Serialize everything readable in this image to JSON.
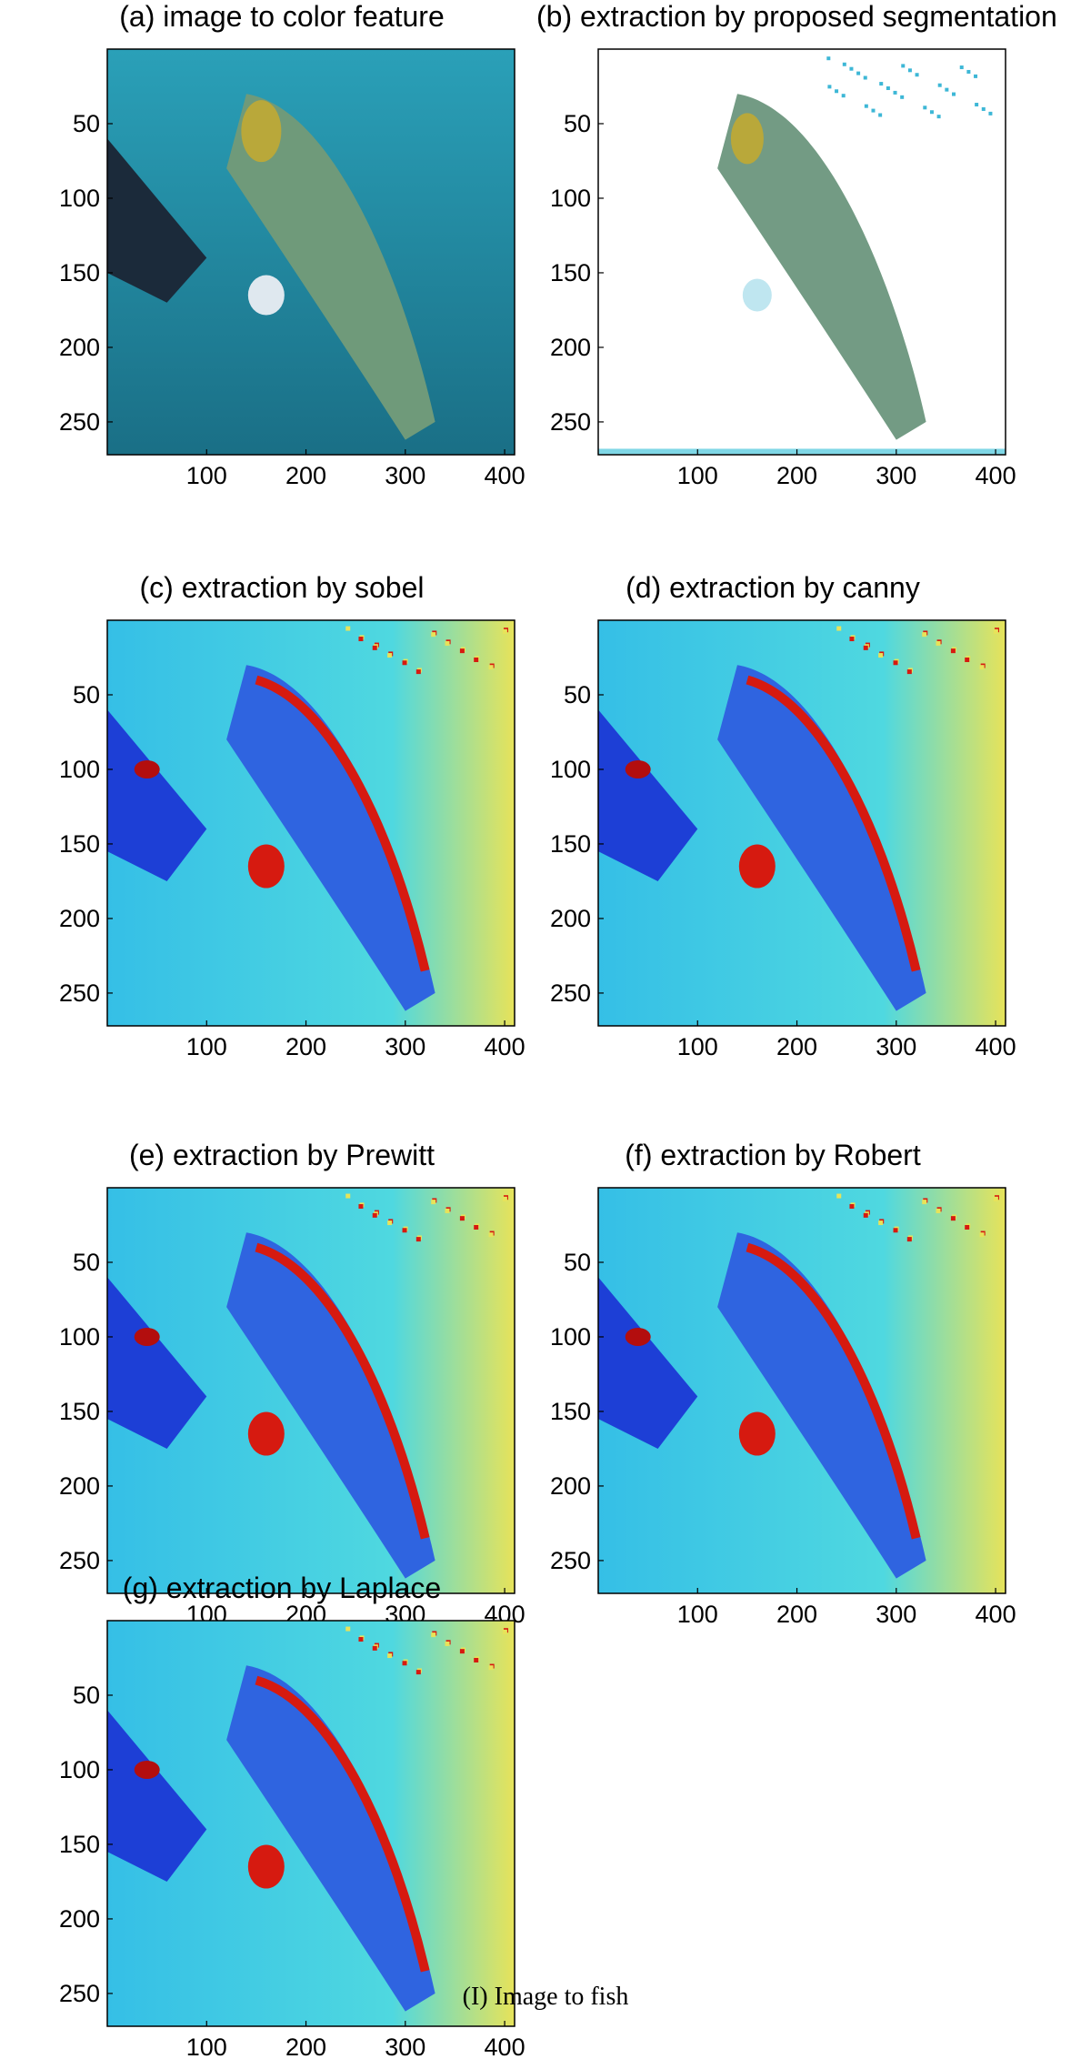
{
  "figure": {
    "caption": "(I) Image to fish",
    "axes": {
      "x_ticks": [
        "100",
        "200",
        "300",
        "400"
      ],
      "y_ticks": [
        "50",
        "100",
        "150",
        "200",
        "250"
      ]
    },
    "panels": [
      {
        "title": "(a) image to color feature",
        "style": "photo"
      },
      {
        "title": "(b) extraction by proposed segmentation",
        "style": "segmented"
      },
      {
        "title": "(c) extraction by sobel",
        "style": "jet"
      },
      {
        "title": "(d) extraction by canny",
        "style": "jet"
      },
      {
        "title": "(e) extraction by Prewitt",
        "style": "jet"
      },
      {
        "title": "(f) extraction by  Robert",
        "style": "jet"
      },
      {
        "title": "(g) extraction by Laplace",
        "style": "jet"
      }
    ]
  },
  "colors": {
    "photo_water": "#1f8fa8",
    "photo_fish": "#6f9a7a",
    "photo_head": "#b9a83a",
    "jet_background": "#4fd8e0",
    "jet_blue": "#1d3fd6",
    "jet_red": "#d61a10",
    "jet_yellow": "#e7e35a"
  }
}
